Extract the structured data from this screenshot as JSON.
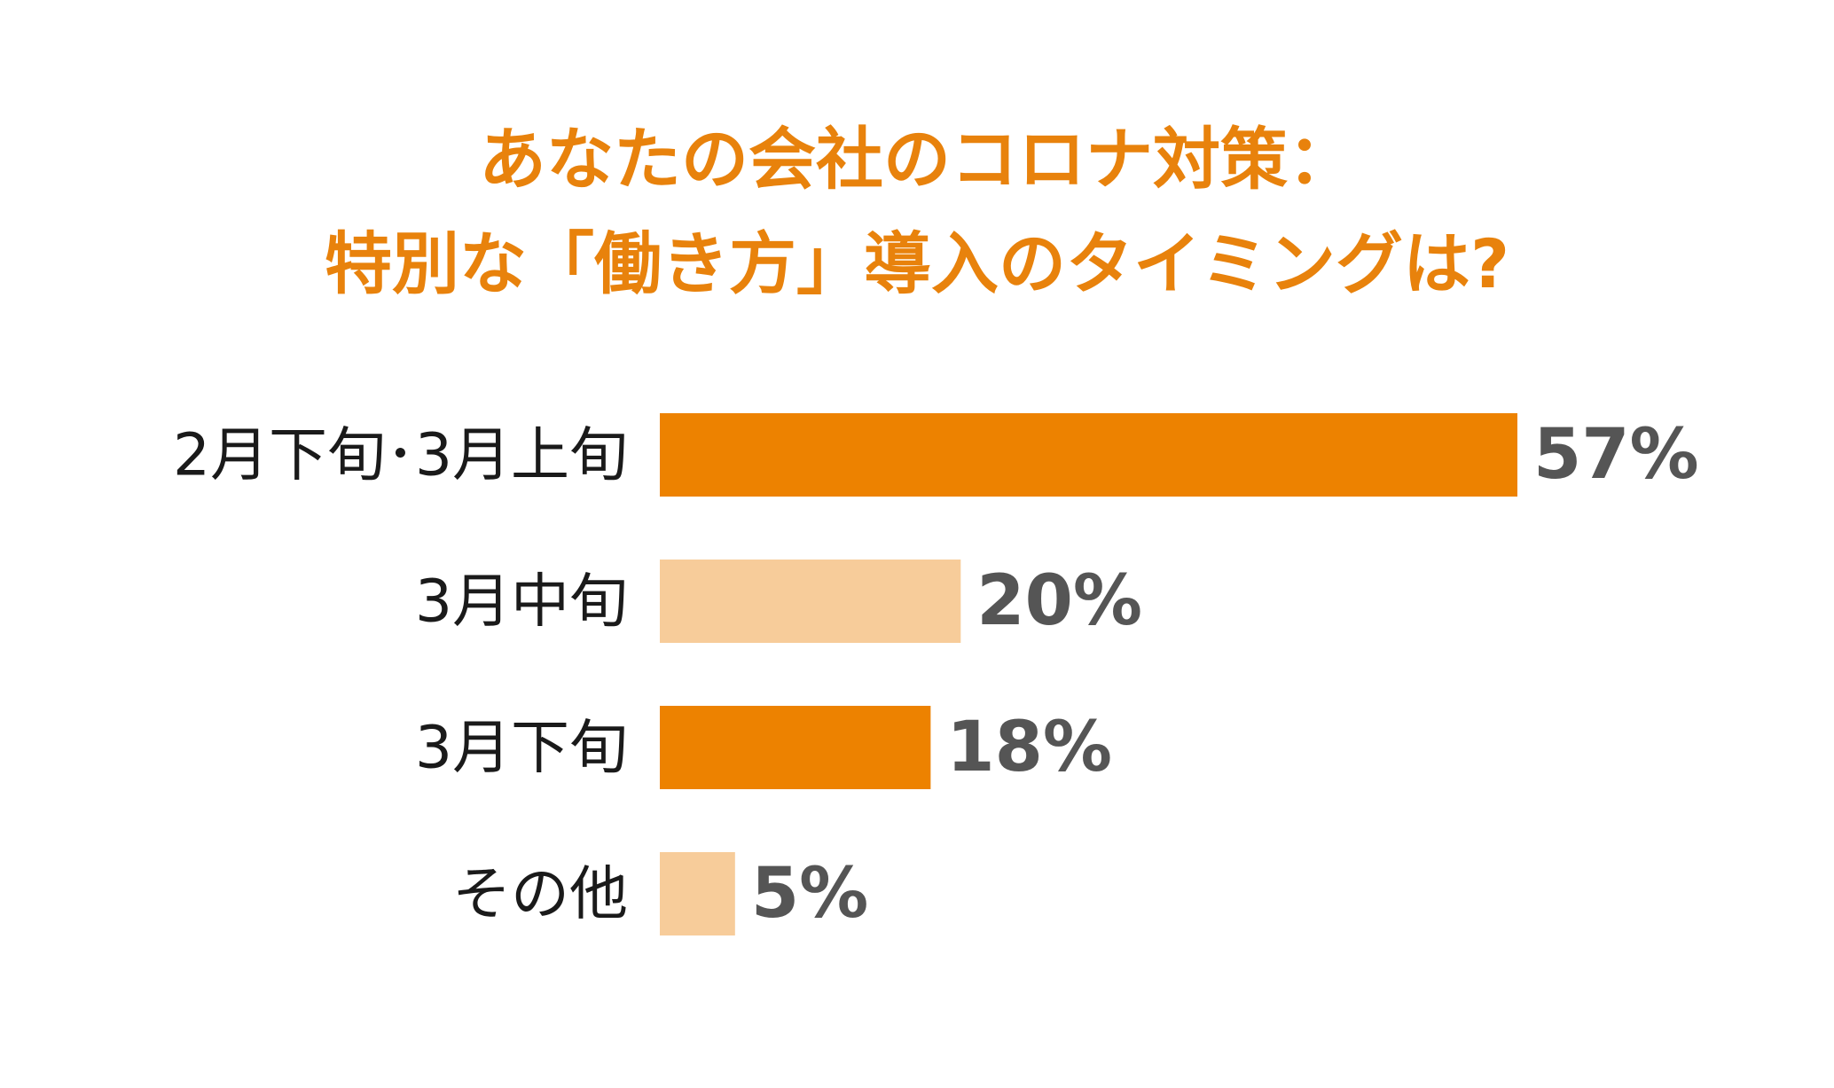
{
  "chart_data": {
    "type": "bar",
    "orientation": "horizontal",
    "title": "あなたの会社のコロナ対策：特別な「働き方」導入のタイミングは?",
    "title_lines": [
      "あなたの会社のコロナ対策：",
      "特別な「働き方」導入のタイミングは?"
    ],
    "categories": [
      "2月下旬･3月上旬",
      "3月中旬",
      "3月下旬",
      "その他"
    ],
    "values": [
      57,
      20,
      18,
      5
    ],
    "value_labels": [
      "57%",
      "20%",
      "18%",
      "5%"
    ],
    "unit": "%",
    "xlim": [
      0,
      57
    ],
    "bar_colors": [
      "#ed8200",
      "#f7cc9a",
      "#ed8200",
      "#f7cc9a"
    ],
    "title_color": "#e8820c",
    "value_label_color": "#555555",
    "grid": false,
    "legend": "none"
  }
}
